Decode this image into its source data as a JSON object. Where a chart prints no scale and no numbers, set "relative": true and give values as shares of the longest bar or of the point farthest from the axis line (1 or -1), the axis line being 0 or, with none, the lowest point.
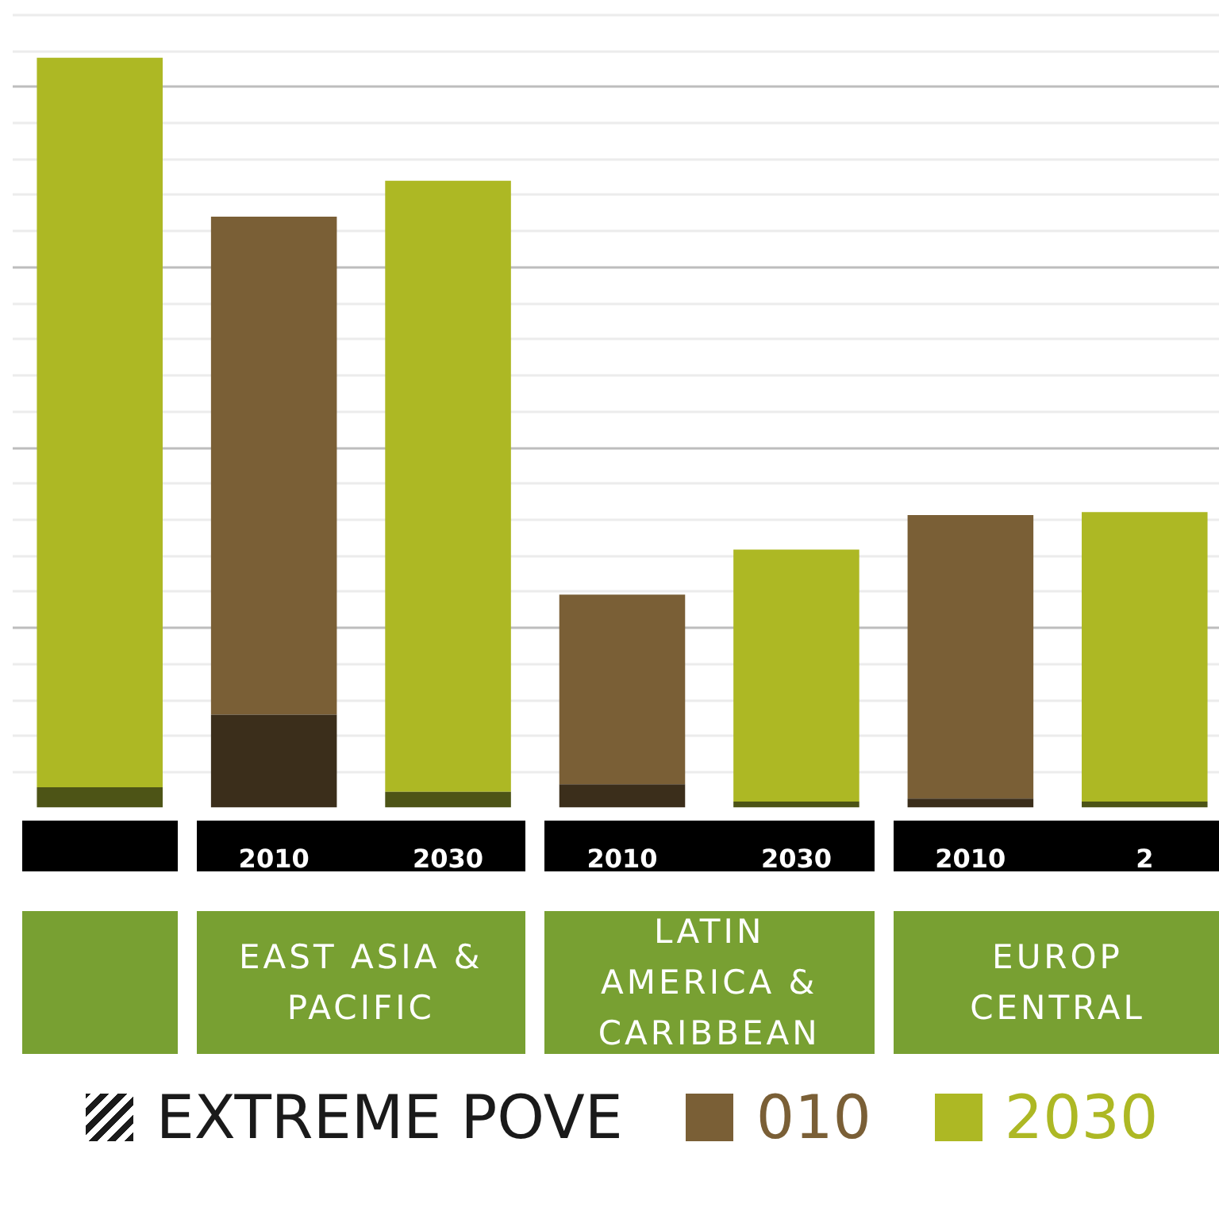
{
  "chart_data": {
    "type": "bar",
    "stacked": true,
    "relative": true,
    "grid": "y",
    "legend": "bottom",
    "categories": [
      null,
      "2010",
      "2030",
      "2010",
      "2030",
      "2010",
      "2"
    ],
    "series": [
      {
        "name": "EXTREME POVE",
        "color": "#1a1a1a",
        "colors": [
          "#4d5416",
          "#3b2e1b",
          "#4d5416",
          "#3b2e1b",
          "#4d5416",
          "#3b2e1b",
          "#4d5416"
        ],
        "values": [
          0.027,
          0.124,
          0.021,
          0.031,
          0.008,
          0.012,
          0.008
        ]
      },
      {
        "name": "010",
        "color": "#7a5f36",
        "values": [
          null,
          0.664,
          null,
          0.253,
          null,
          0.378,
          null
        ]
      },
      {
        "name": "2030",
        "color": "#adb824",
        "values": [
          0.973,
          null,
          0.815,
          null,
          0.336,
          null,
          0.386
        ]
      }
    ],
    "annotations": [
      "EAST ASIA & PACIFIC",
      "LATIN AMERICA & CARIBBEAN",
      "EUROP CENTRAL"
    ]
  }
}
